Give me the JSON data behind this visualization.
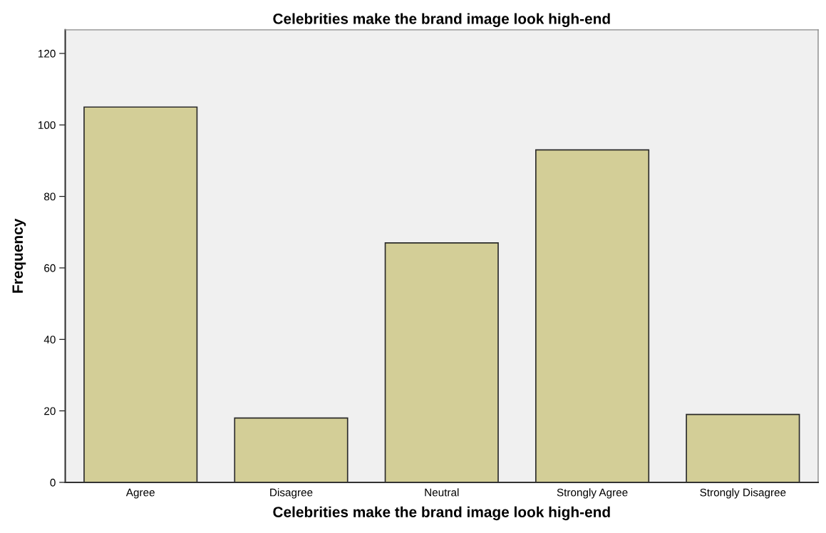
{
  "chart_data": {
    "type": "bar",
    "title": "Celebrities make the brand image look high-end",
    "xlabel": "Celebrities make the brand image look high-end",
    "ylabel": "Frequency",
    "categories": [
      "Agree",
      "Disagree",
      "Neutral",
      "Strongly Agree",
      "Strongly Disagree"
    ],
    "values": [
      105,
      18,
      67,
      93,
      19
    ],
    "color": "#d3ce97",
    "ylim": [
      0,
      126.6
    ],
    "yticks": [
      0,
      20,
      40,
      60,
      80,
      100,
      120
    ],
    "grid": false
  }
}
